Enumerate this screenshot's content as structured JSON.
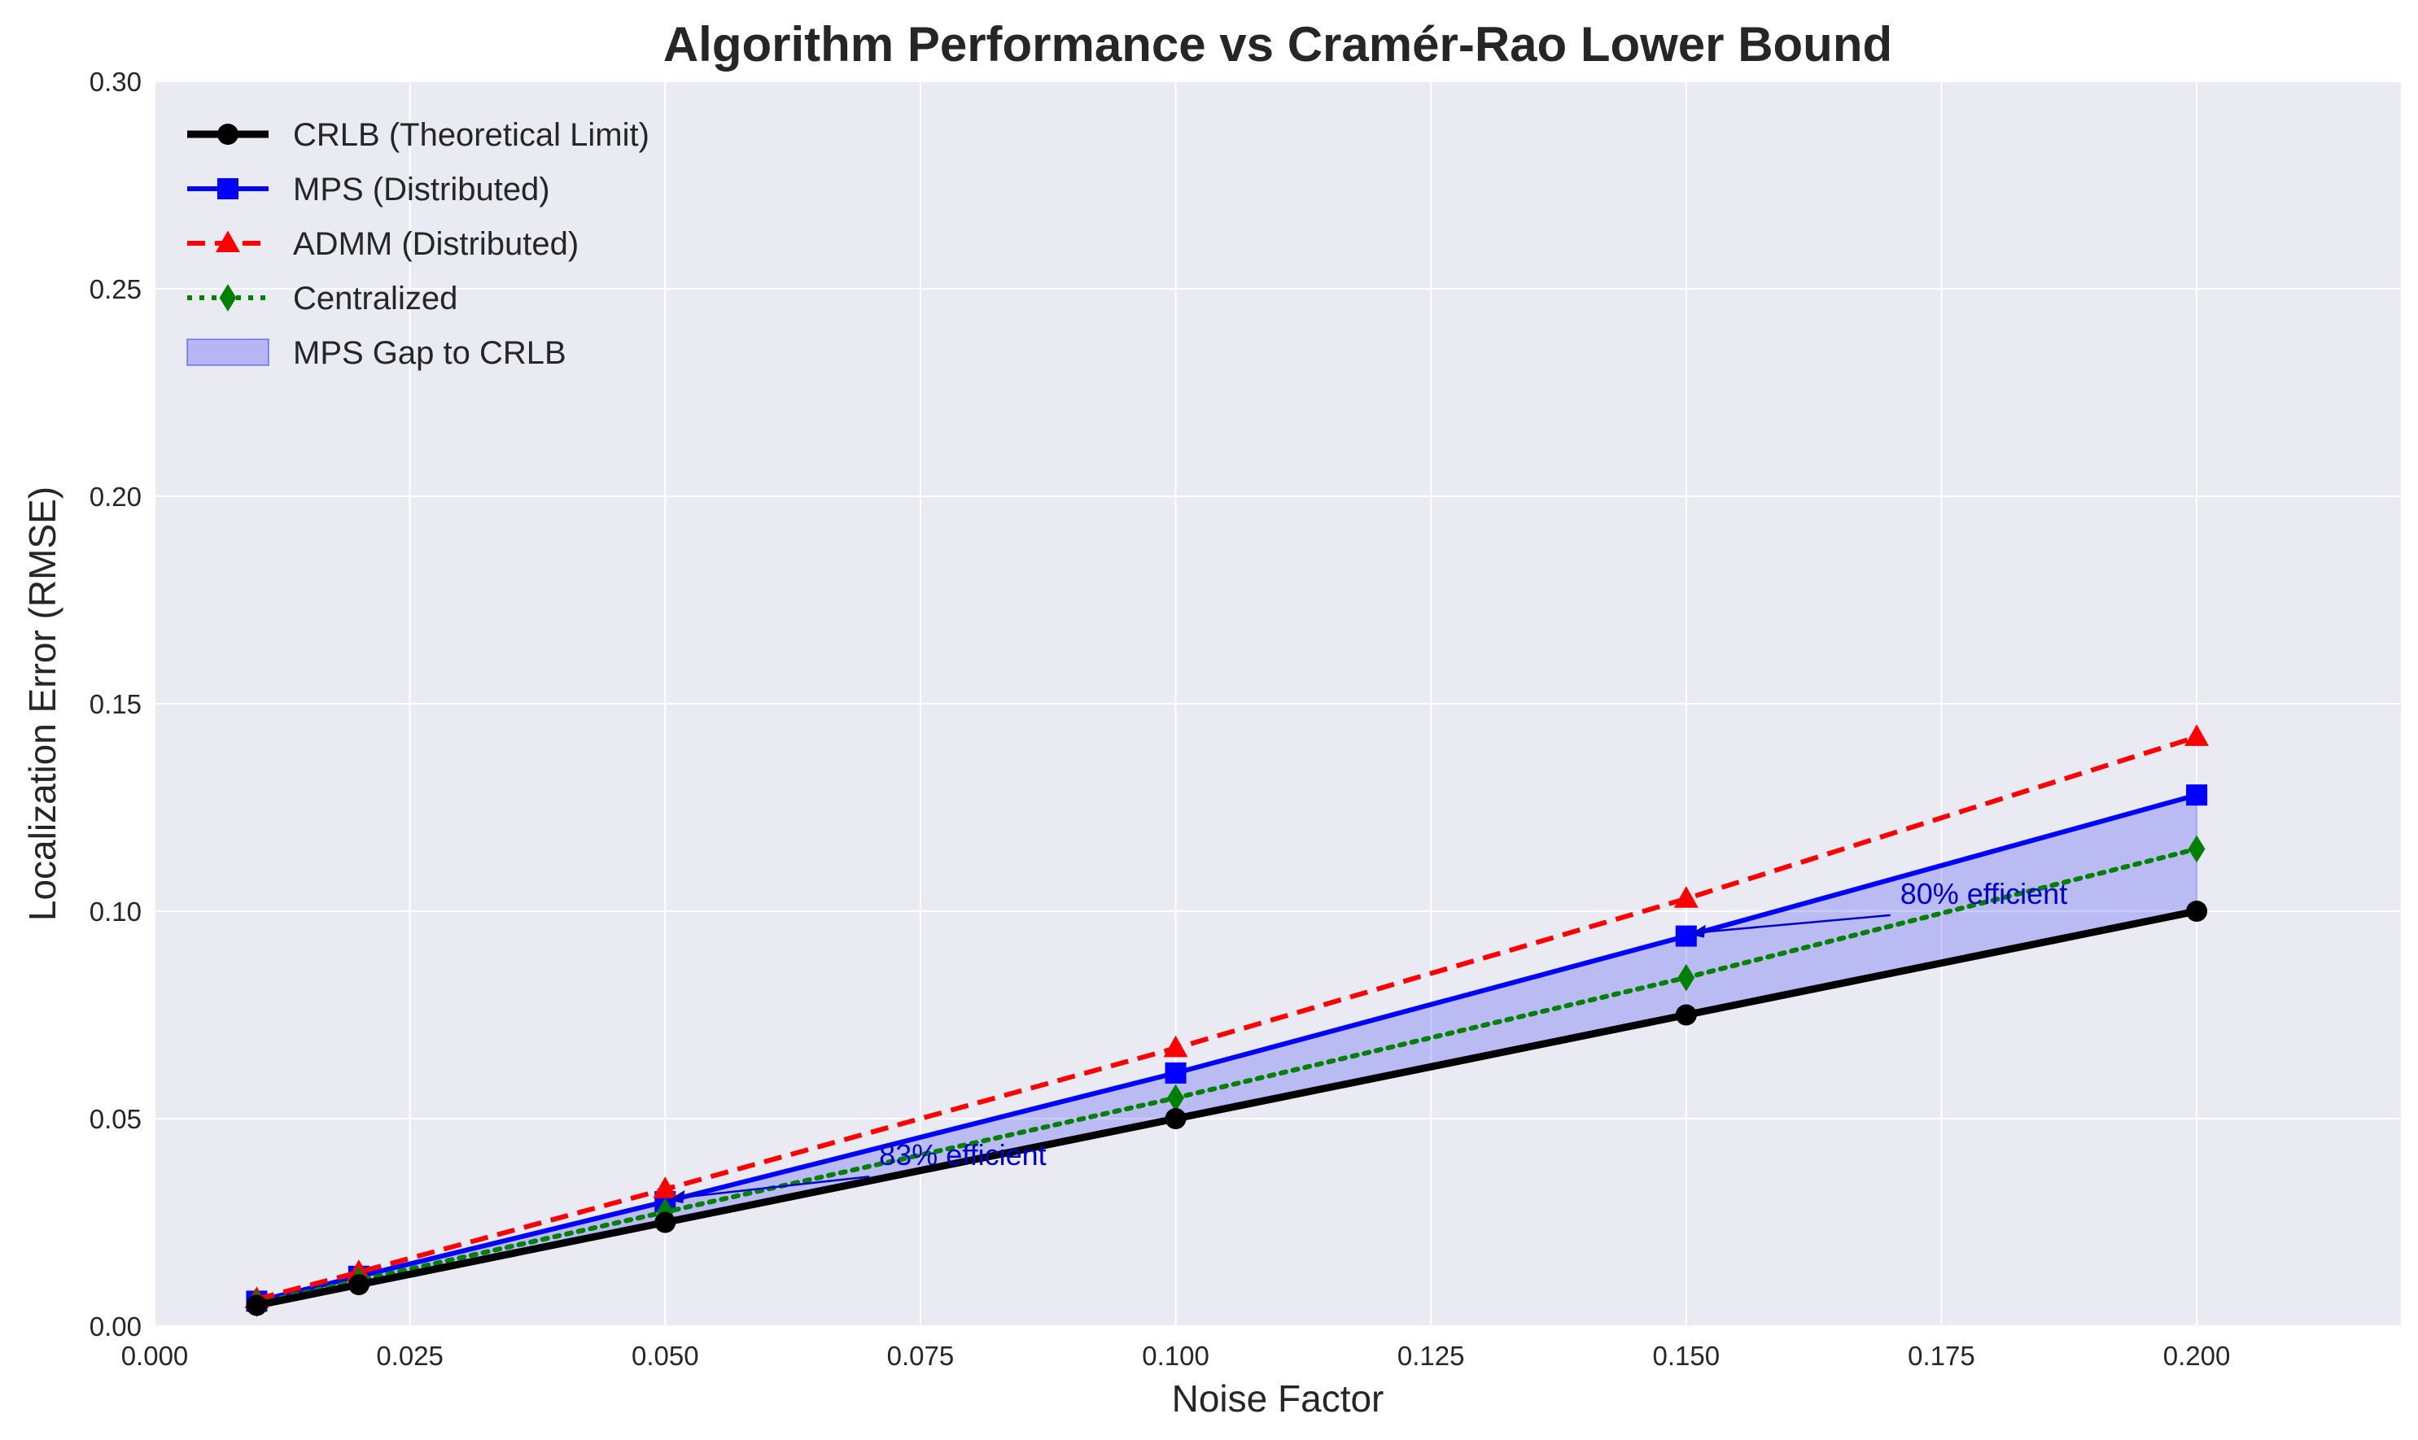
{
  "chart_data": {
    "type": "line",
    "title": "Algorithm Performance vs Cramér-Rao Lower Bound",
    "xlabel": "Noise Factor",
    "ylabel": "Localization Error (RMSE)",
    "xlim": [
      0.0,
      0.22
    ],
    "ylim": [
      0.0,
      0.3
    ],
    "xticks": [
      0.0,
      0.025,
      0.05,
      0.075,
      0.1,
      0.125,
      0.15,
      0.175,
      0.2
    ],
    "xtick_labels": [
      "0.000",
      "0.025",
      "0.050",
      "0.075",
      "0.100",
      "0.125",
      "0.150",
      "0.175",
      "0.200"
    ],
    "yticks": [
      0.0,
      0.05,
      0.1,
      0.15,
      0.2,
      0.25,
      0.3
    ],
    "ytick_labels": [
      "0.00",
      "0.05",
      "0.10",
      "0.15",
      "0.20",
      "0.25",
      "0.30"
    ],
    "grid": true,
    "legend_position": "top-left",
    "x": [
      0.01,
      0.02,
      0.05,
      0.1,
      0.15,
      0.2
    ],
    "series": [
      {
        "name": "CRLB (Theoretical Limit)",
        "color": "#000000",
        "line_style": "solid",
        "marker": "circle",
        "values": [
          0.005,
          0.01,
          0.025,
          0.05,
          0.075,
          0.1
        ]
      },
      {
        "name": "MPS (Distributed)",
        "color": "#0000ff",
        "line_style": "solid",
        "marker": "square",
        "values": [
          0.006,
          0.012,
          0.03,
          0.061,
          0.094,
          0.128
        ]
      },
      {
        "name": "ADMM (Distributed)",
        "color": "#ff0000",
        "line_style": "dashed",
        "marker": "triangle",
        "values": [
          0.0065,
          0.013,
          0.033,
          0.067,
          0.103,
          0.142
        ]
      },
      {
        "name": "Centralized",
        "color": "#008000",
        "line_style": "dotted",
        "marker": "diamond",
        "values": [
          0.0055,
          0.011,
          0.0275,
          0.055,
          0.084,
          0.115
        ]
      }
    ],
    "fill_between": {
      "name": "MPS Gap to CRLB",
      "color": "#0000ff",
      "opacity": 0.2,
      "lower": "CRLB (Theoretical Limit)",
      "upper": "MPS (Distributed)"
    },
    "annotations": [
      {
        "text": "83% efficient",
        "point": [
          0.05,
          0.03
        ],
        "text_at": [
          0.07,
          0.038
        ],
        "color": "#0000cc"
      },
      {
        "text": "80% efficient",
        "point": [
          0.15,
          0.094
        ],
        "text_at": [
          0.17,
          0.101
        ],
        "color": "#0000cc"
      }
    ]
  }
}
